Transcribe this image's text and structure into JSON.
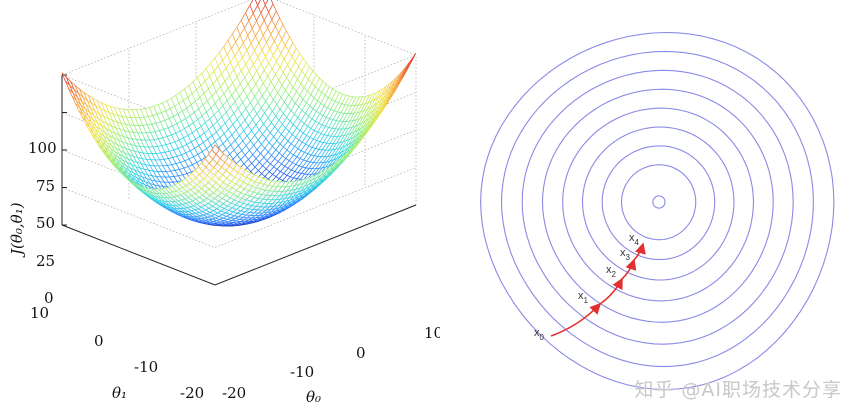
{
  "surface_plot": {
    "z_axis_label": "J(θ₀,θ₁)",
    "z_ticks": [
      "100",
      "75",
      "50",
      "25",
      "0"
    ],
    "theta1_label": "θ₁",
    "theta1_ticks": [
      "10",
      "0",
      "-10",
      "-20"
    ],
    "theta0_label": "θ₀",
    "theta0_ticks": [
      "-20",
      "-10",
      "0",
      "10"
    ],
    "colormap": [
      "#1a1ab0",
      "#2f7fff",
      "#33d6e6",
      "#9cf07a",
      "#f2e44a",
      "#f59a3a",
      "#d81e1e"
    ]
  },
  "contour_plot": {
    "contour_color": "#8a8ae6",
    "path_color": "#e03030",
    "points": [
      {
        "base": "x",
        "sub": "0"
      },
      {
        "base": "x",
        "sub": "1"
      },
      {
        "base": "x",
        "sub": "2"
      },
      {
        "base": "x",
        "sub": "3"
      },
      {
        "base": "x",
        "sub": "4"
      }
    ]
  },
  "watermark": "知乎 @AI职场技术分享"
}
